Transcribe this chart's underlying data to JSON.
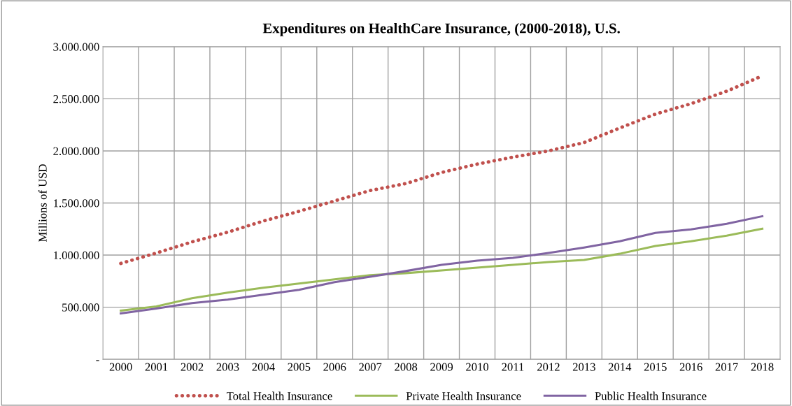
{
  "chart_data": {
    "type": "line",
    "title": "Expenditures on HealthCare Insurance, (2000-2018), U.S.",
    "ylabel": "Millions of USD",
    "categories": [
      "2000",
      "2001",
      "2002",
      "2003",
      "2004",
      "2005",
      "2006",
      "2007",
      "2008",
      "2009",
      "2010",
      "2011",
      "2012",
      "2013",
      "2014",
      "2015",
      "2016",
      "2017",
      "2018"
    ],
    "series": [
      {
        "name": "Total Health Insurance",
        "color": "#c0504d",
        "line_style": "dotted",
        "values": [
          920000,
          1020000,
          1127000,
          1220000,
          1327000,
          1420000,
          1520000,
          1620000,
          1687000,
          1793000,
          1873000,
          1940000,
          2000000,
          2080000,
          2220000,
          2353000,
          2453000,
          2573000,
          2720000
        ]
      },
      {
        "name": "Private Health Insurance",
        "color": "#9bbb59",
        "line_style": "solid",
        "values": [
          467000,
          507000,
          587000,
          640000,
          687000,
          727000,
          767000,
          807000,
          827000,
          853000,
          880000,
          907000,
          933000,
          953000,
          1013000,
          1087000,
          1133000,
          1187000,
          1253000
        ]
      },
      {
        "name": "Public Health Insurance",
        "color": "#8064a2",
        "line_style": "solid",
        "values": [
          440000,
          487000,
          540000,
          573000,
          620000,
          667000,
          740000,
          793000,
          847000,
          907000,
          947000,
          973000,
          1020000,
          1073000,
          1133000,
          1213000,
          1247000,
          1300000,
          1373000
        ]
      }
    ],
    "ylim": [
      0,
      3000000
    ],
    "yticks": [
      {
        "value": 0,
        "label": "-"
      },
      {
        "value": 500000,
        "label": "500.000"
      },
      {
        "value": 1000000,
        "label": "1.000.000"
      },
      {
        "value": 1500000,
        "label": "1.500.000"
      },
      {
        "value": 2000000,
        "label": "2.000.000"
      },
      {
        "value": 2500000,
        "label": "2.500.000"
      },
      {
        "value": 3000000,
        "label": "3.000.000"
      }
    ],
    "grid": true,
    "legend": "bottom",
    "marker": "none"
  }
}
